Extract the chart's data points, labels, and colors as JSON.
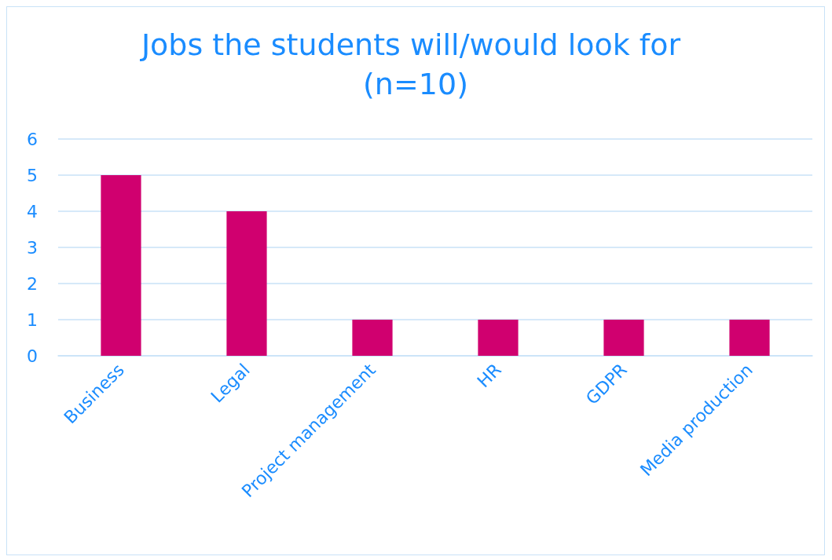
{
  "chart_data": {
    "type": "bar",
    "title": "Jobs the students will/would look for (n=10)",
    "categories": [
      "Business",
      "Legal",
      "Project management",
      "HR",
      "GDPR",
      "Media production"
    ],
    "values": [
      5,
      4,
      1,
      1,
      1,
      1
    ],
    "color": "#d0006f",
    "ylim": [
      0,
      6
    ],
    "yticks": [
      0,
      1,
      2,
      3,
      4,
      5,
      6
    ],
    "grid": "y"
  }
}
